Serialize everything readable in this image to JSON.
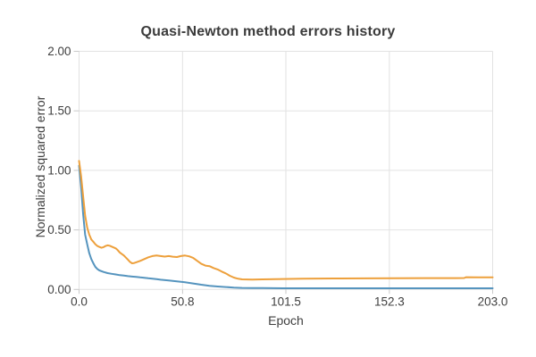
{
  "chart_data": {
    "type": "line",
    "title": "Quasi-Newton method errors history",
    "xlabel": "Epoch",
    "ylabel": "Normalized squared error",
    "xlim": [
      0,
      203
    ],
    "ylim": [
      0,
      2
    ],
    "grid": true,
    "legend": "none",
    "x_ticks": {
      "values": [
        0,
        50.8,
        101.5,
        152.3,
        203
      ],
      "labels": [
        "0.0",
        "50.8",
        "101.5",
        "152.3",
        "203.0"
      ]
    },
    "y_ticks": {
      "values": [
        0,
        0.5,
        1,
        1.5,
        2
      ],
      "labels": [
        "0.00",
        "0.50",
        "1.00",
        "1.50",
        "2.00"
      ]
    },
    "colors": {
      "grid": "#e2e2e2",
      "tick_mark": "#c9c9c9",
      "text": "#3f3f3f",
      "title": "#3b3b3b",
      "blue_series": "#5594be",
      "orange_series": "#eda03c"
    },
    "series": [
      {
        "name": "blue-series",
        "color": "#5594be",
        "points": [
          [
            0,
            1.04
          ],
          [
            1,
            0.86
          ],
          [
            2,
            0.63
          ],
          [
            3,
            0.46
          ],
          [
            4,
            0.38
          ],
          [
            5,
            0.305
          ],
          [
            6,
            0.255
          ],
          [
            7,
            0.22
          ],
          [
            8,
            0.19
          ],
          [
            9,
            0.172
          ],
          [
            10,
            0.16
          ],
          [
            12,
            0.147
          ],
          [
            14,
            0.137
          ],
          [
            16,
            0.131
          ],
          [
            18,
            0.126
          ],
          [
            20,
            0.12
          ],
          [
            22,
            0.116
          ],
          [
            24,
            0.112
          ],
          [
            26,
            0.108
          ],
          [
            28,
            0.105
          ],
          [
            30,
            0.101
          ],
          [
            32,
            0.098
          ],
          [
            34,
            0.094
          ],
          [
            36,
            0.09
          ],
          [
            38,
            0.086
          ],
          [
            40,
            0.082
          ],
          [
            44,
            0.075
          ],
          [
            48,
            0.068
          ],
          [
            52,
            0.06
          ],
          [
            56,
            0.05
          ],
          [
            60,
            0.04
          ],
          [
            64,
            0.031
          ],
          [
            68,
            0.025
          ],
          [
            72,
            0.02
          ],
          [
            76,
            0.016
          ],
          [
            80,
            0.013
          ],
          [
            85,
            0.012
          ],
          [
            90,
            0.011
          ],
          [
            100,
            0.01
          ],
          [
            120,
            0.01
          ],
          [
            140,
            0.01
          ],
          [
            160,
            0.01
          ],
          [
            180,
            0.01
          ],
          [
            203,
            0.01
          ]
        ]
      },
      {
        "name": "orange-series",
        "color": "#eda03c",
        "points": [
          [
            0,
            1.08
          ],
          [
            1,
            0.95
          ],
          [
            2,
            0.78
          ],
          [
            3,
            0.62
          ],
          [
            4,
            0.52
          ],
          [
            5,
            0.46
          ],
          [
            6,
            0.42
          ],
          [
            7,
            0.4
          ],
          [
            8,
            0.38
          ],
          [
            9,
            0.365
          ],
          [
            10,
            0.357
          ],
          [
            11,
            0.35
          ],
          [
            12,
            0.355
          ],
          [
            13,
            0.365
          ],
          [
            14,
            0.37
          ],
          [
            15,
            0.367
          ],
          [
            16,
            0.36
          ],
          [
            17,
            0.352
          ],
          [
            18,
            0.345
          ],
          [
            19,
            0.33
          ],
          [
            20,
            0.31
          ],
          [
            22,
            0.285
          ],
          [
            24,
            0.25
          ],
          [
            25,
            0.232
          ],
          [
            26,
            0.22
          ],
          [
            27,
            0.222
          ],
          [
            28,
            0.228
          ],
          [
            30,
            0.24
          ],
          [
            32,
            0.255
          ],
          [
            34,
            0.27
          ],
          [
            36,
            0.28
          ],
          [
            38,
            0.285
          ],
          [
            40,
            0.28
          ],
          [
            42,
            0.276
          ],
          [
            44,
            0.28
          ],
          [
            46,
            0.275
          ],
          [
            48,
            0.272
          ],
          [
            50,
            0.28
          ],
          [
            52,
            0.285
          ],
          [
            54,
            0.278
          ],
          [
            56,
            0.265
          ],
          [
            58,
            0.24
          ],
          [
            60,
            0.215
          ],
          [
            62,
            0.2
          ],
          [
            64,
            0.196
          ],
          [
            66,
            0.18
          ],
          [
            68,
            0.168
          ],
          [
            70,
            0.15
          ],
          [
            72,
            0.135
          ],
          [
            74,
            0.115
          ],
          [
            76,
            0.1
          ],
          [
            78,
            0.09
          ],
          [
            80,
            0.085
          ],
          [
            85,
            0.083
          ],
          [
            90,
            0.085
          ],
          [
            100,
            0.088
          ],
          [
            110,
            0.09
          ],
          [
            125,
            0.092
          ],
          [
            140,
            0.093
          ],
          [
            155,
            0.094
          ],
          [
            170,
            0.095
          ],
          [
            185,
            0.095
          ],
          [
            189,
            0.096
          ],
          [
            190,
            0.103
          ],
          [
            196,
            0.101
          ],
          [
            203,
            0.101
          ]
        ]
      }
    ]
  }
}
